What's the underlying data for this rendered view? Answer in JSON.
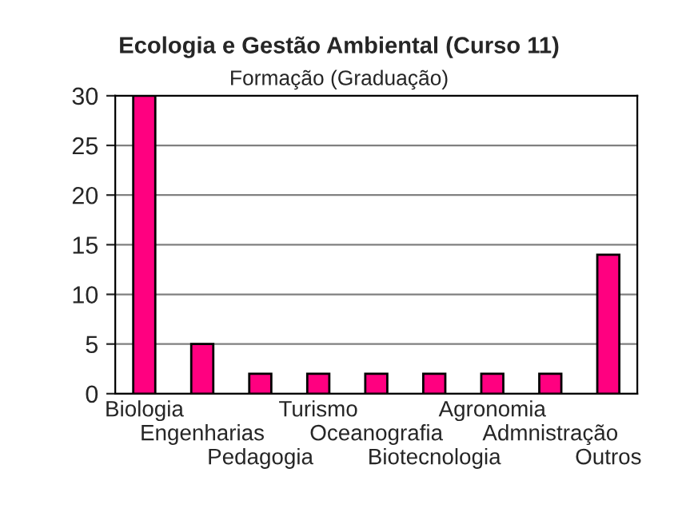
{
  "chart_data": {
    "type": "bar",
    "title": "Ecologia e Gestão Ambiental (Curso 11)",
    "subtitle": "Formação (Graduação)",
    "categories": [
      "Biologia",
      "Engenharias",
      "Pedagogia",
      "Turismo",
      "Oceanografia",
      "Biotecnologia",
      "Agronomia",
      "Admnistração",
      "Outros"
    ],
    "values": [
      30,
      5,
      2,
      2,
      2,
      2,
      2,
      2,
      14
    ],
    "color": "#ff0080",
    "ylim": [
      0,
      30
    ],
    "yticks": [
      0,
      5,
      10,
      15,
      20,
      25,
      30
    ],
    "grid": "y"
  }
}
